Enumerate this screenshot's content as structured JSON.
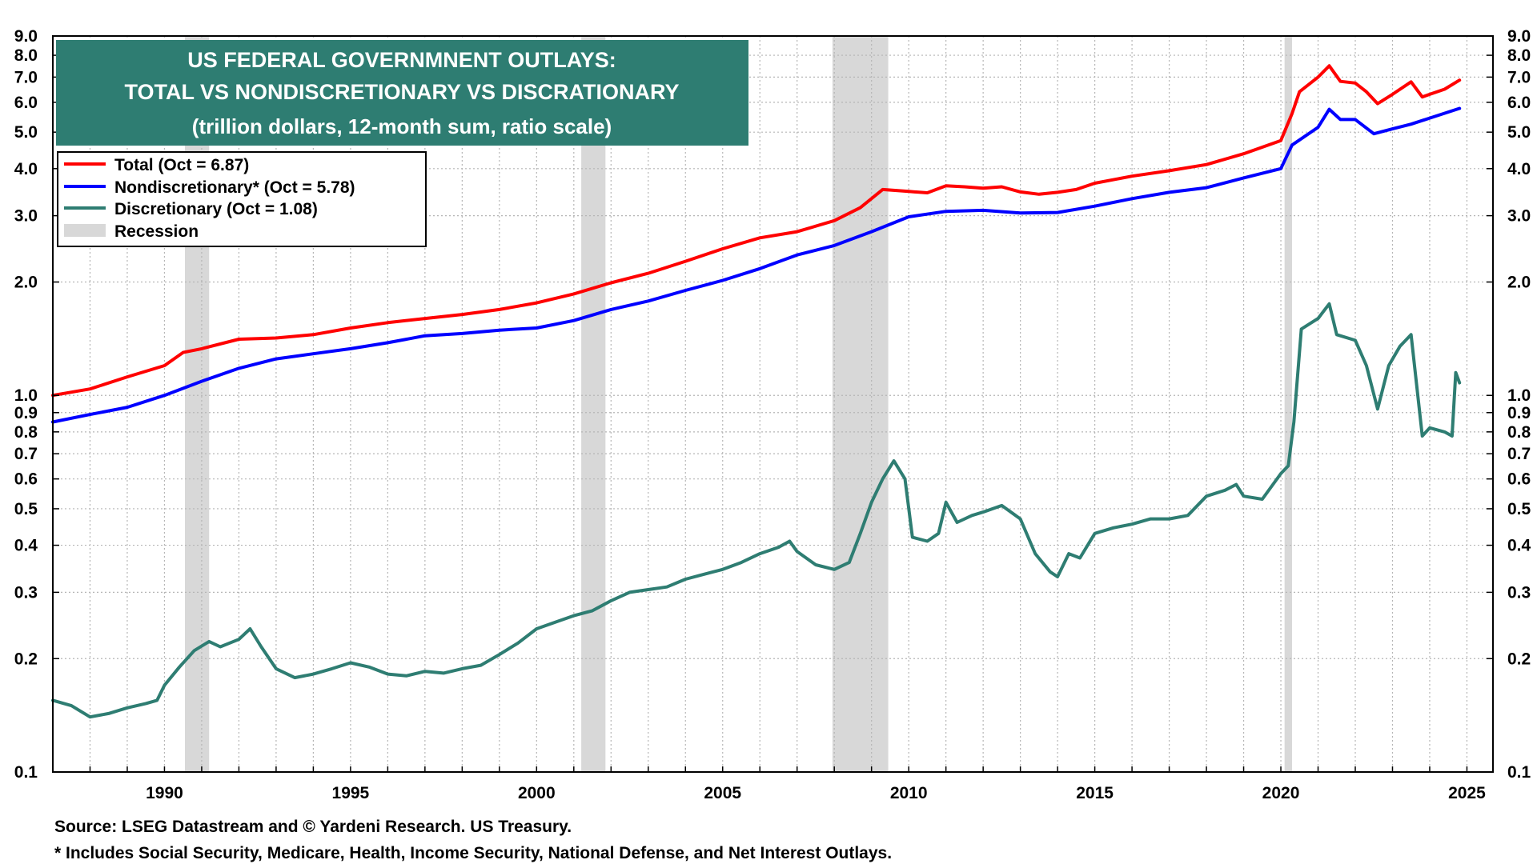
{
  "chart_data": {
    "type": "line",
    "title": "US FEDERAL GOVERNMNENT OUTLAYS:",
    "subtitle": "TOTAL VS NONDISCRETIONARY VS DISCRATIONARY",
    "units_note": "(trillion dollars, 12-month sum, ratio scale)",
    "y_scale": "log",
    "ylim": [
      0.1,
      9.0
    ],
    "xlim": [
      1987.0,
      2025.7
    ],
    "x_ticks": [
      1990,
      1995,
      2000,
      2005,
      2010,
      2015,
      2020,
      2025
    ],
    "x_tick_labels": [
      "1990",
      "1995",
      "2000",
      "2005",
      "2010",
      "2015",
      "2020",
      "2025"
    ],
    "y_ticks": [
      0.1,
      0.2,
      0.3,
      0.4,
      0.5,
      0.6,
      0.7,
      0.8,
      0.9,
      1.0,
      2.0,
      3.0,
      4.0,
      5.0,
      6.0,
      7.0,
      8.0,
      9.0
    ],
    "y_tick_labels": [
      "0.1",
      "0.2",
      "0.3",
      "0.4",
      "0.5",
      "0.6",
      "0.7",
      "0.8",
      "0.9",
      "1.0",
      "2.0",
      "3.0",
      "4.0",
      "5.0",
      "6.0",
      "7.0",
      "8.0",
      "9.0"
    ],
    "grid": true,
    "legend_position": "top-left",
    "recessions": [
      [
        1990.55,
        1991.2
      ],
      [
        2001.2,
        2001.85
      ],
      [
        2007.95,
        2009.45
      ],
      [
        2020.1,
        2020.3
      ]
    ],
    "series": [
      {
        "name": "Total (Oct = 6.87)",
        "color": "#ff0000",
        "points": [
          [
            1987.0,
            1.0
          ],
          [
            1988.0,
            1.04
          ],
          [
            1989.0,
            1.12
          ],
          [
            1990.0,
            1.2
          ],
          [
            1990.5,
            1.3
          ],
          [
            1991.0,
            1.33
          ],
          [
            1992.0,
            1.41
          ],
          [
            1993.0,
            1.42
          ],
          [
            1994.0,
            1.45
          ],
          [
            1995.0,
            1.51
          ],
          [
            1996.0,
            1.56
          ],
          [
            1997.0,
            1.6
          ],
          [
            1998.0,
            1.64
          ],
          [
            1999.0,
            1.69
          ],
          [
            2000.0,
            1.76
          ],
          [
            2001.0,
            1.86
          ],
          [
            2002.0,
            1.99
          ],
          [
            2003.0,
            2.11
          ],
          [
            2004.0,
            2.27
          ],
          [
            2005.0,
            2.45
          ],
          [
            2006.0,
            2.62
          ],
          [
            2007.0,
            2.72
          ],
          [
            2008.0,
            2.91
          ],
          [
            2008.7,
            3.15
          ],
          [
            2009.3,
            3.52
          ],
          [
            2010.0,
            3.48
          ],
          [
            2010.5,
            3.45
          ],
          [
            2011.0,
            3.6
          ],
          [
            2011.5,
            3.58
          ],
          [
            2012.0,
            3.55
          ],
          [
            2012.5,
            3.58
          ],
          [
            2013.0,
            3.47
          ],
          [
            2013.5,
            3.42
          ],
          [
            2014.0,
            3.46
          ],
          [
            2014.5,
            3.52
          ],
          [
            2015.0,
            3.66
          ],
          [
            2016.0,
            3.82
          ],
          [
            2017.0,
            3.95
          ],
          [
            2018.0,
            4.1
          ],
          [
            2019.0,
            4.38
          ],
          [
            2020.0,
            4.75
          ],
          [
            2020.3,
            5.6
          ],
          [
            2020.5,
            6.4
          ],
          [
            2021.0,
            7.0
          ],
          [
            2021.3,
            7.5
          ],
          [
            2021.6,
            6.82
          ],
          [
            2022.0,
            6.75
          ],
          [
            2022.3,
            6.4
          ],
          [
            2022.6,
            5.95
          ],
          [
            2023.0,
            6.3
          ],
          [
            2023.5,
            6.8
          ],
          [
            2023.8,
            6.2
          ],
          [
            2024.0,
            6.3
          ],
          [
            2024.4,
            6.5
          ],
          [
            2024.8,
            6.87
          ]
        ]
      },
      {
        "name": "Nondiscretionary* (Oct = 5.78)",
        "color": "#0000ff",
        "points": [
          [
            1987.0,
            0.85
          ],
          [
            1988.0,
            0.89
          ],
          [
            1989.0,
            0.93
          ],
          [
            1990.0,
            1.0
          ],
          [
            1991.0,
            1.09
          ],
          [
            1992.0,
            1.18
          ],
          [
            1993.0,
            1.25
          ],
          [
            1994.0,
            1.29
          ],
          [
            1995.0,
            1.33
          ],
          [
            1996.0,
            1.38
          ],
          [
            1997.0,
            1.44
          ],
          [
            1998.0,
            1.46
          ],
          [
            1999.0,
            1.49
          ],
          [
            2000.0,
            1.51
          ],
          [
            2001.0,
            1.58
          ],
          [
            2002.0,
            1.69
          ],
          [
            2003.0,
            1.78
          ],
          [
            2004.0,
            1.9
          ],
          [
            2005.0,
            2.02
          ],
          [
            2006.0,
            2.17
          ],
          [
            2007.0,
            2.36
          ],
          [
            2008.0,
            2.5
          ],
          [
            2009.0,
            2.72
          ],
          [
            2010.0,
            2.98
          ],
          [
            2011.0,
            3.08
          ],
          [
            2012.0,
            3.1
          ],
          [
            2013.0,
            3.05
          ],
          [
            2014.0,
            3.06
          ],
          [
            2015.0,
            3.18
          ],
          [
            2016.0,
            3.33
          ],
          [
            2017.0,
            3.46
          ],
          [
            2018.0,
            3.56
          ],
          [
            2019.0,
            3.78
          ],
          [
            2020.0,
            4.0
          ],
          [
            2020.3,
            4.62
          ],
          [
            2021.0,
            5.15
          ],
          [
            2021.3,
            5.75
          ],
          [
            2021.6,
            5.4
          ],
          [
            2022.0,
            5.4
          ],
          [
            2022.5,
            4.95
          ],
          [
            2023.0,
            5.1
          ],
          [
            2023.5,
            5.25
          ],
          [
            2024.0,
            5.45
          ],
          [
            2024.8,
            5.78
          ]
        ]
      },
      {
        "name": "Discretionary (Oct = 1.08)",
        "color": "#2e7d72",
        "points": [
          [
            1987.0,
            0.155
          ],
          [
            1987.5,
            0.15
          ],
          [
            1988.0,
            0.14
          ],
          [
            1988.5,
            0.143
          ],
          [
            1989.0,
            0.148
          ],
          [
            1989.5,
            0.152
          ],
          [
            1989.8,
            0.155
          ],
          [
            1990.0,
            0.17
          ],
          [
            1990.4,
            0.19
          ],
          [
            1990.8,
            0.21
          ],
          [
            1991.2,
            0.222
          ],
          [
            1991.5,
            0.215
          ],
          [
            1992.0,
            0.225
          ],
          [
            1992.3,
            0.24
          ],
          [
            1992.6,
            0.215
          ],
          [
            1993.0,
            0.188
          ],
          [
            1993.5,
            0.178
          ],
          [
            1994.0,
            0.182
          ],
          [
            1994.5,
            0.188
          ],
          [
            1995.0,
            0.195
          ],
          [
            1995.5,
            0.19
          ],
          [
            1996.0,
            0.182
          ],
          [
            1996.5,
            0.18
          ],
          [
            1997.0,
            0.185
          ],
          [
            1997.5,
            0.183
          ],
          [
            1998.0,
            0.188
          ],
          [
            1998.5,
            0.192
          ],
          [
            1999.0,
            0.205
          ],
          [
            1999.5,
            0.22
          ],
          [
            2000.0,
            0.24
          ],
          [
            2000.5,
            0.25
          ],
          [
            2001.0,
            0.26
          ],
          [
            2001.5,
            0.268
          ],
          [
            2002.0,
            0.285
          ],
          [
            2002.5,
            0.3
          ],
          [
            2003.0,
            0.305
          ],
          [
            2003.5,
            0.31
          ],
          [
            2004.0,
            0.325
          ],
          [
            2004.5,
            0.335
          ],
          [
            2005.0,
            0.345
          ],
          [
            2005.5,
            0.36
          ],
          [
            2006.0,
            0.38
          ],
          [
            2006.5,
            0.395
          ],
          [
            2006.8,
            0.41
          ],
          [
            2007.0,
            0.385
          ],
          [
            2007.5,
            0.355
          ],
          [
            2008.0,
            0.345
          ],
          [
            2008.4,
            0.36
          ],
          [
            2008.7,
            0.43
          ],
          [
            2009.0,
            0.52
          ],
          [
            2009.3,
            0.6
          ],
          [
            2009.6,
            0.67
          ],
          [
            2009.9,
            0.6
          ],
          [
            2010.1,
            0.42
          ],
          [
            2010.5,
            0.41
          ],
          [
            2010.8,
            0.43
          ],
          [
            2011.0,
            0.52
          ],
          [
            2011.3,
            0.46
          ],
          [
            2011.7,
            0.48
          ],
          [
            2012.0,
            0.49
          ],
          [
            2012.5,
            0.51
          ],
          [
            2013.0,
            0.47
          ],
          [
            2013.4,
            0.38
          ],
          [
            2013.8,
            0.34
          ],
          [
            2014.0,
            0.33
          ],
          [
            2014.3,
            0.38
          ],
          [
            2014.6,
            0.37
          ],
          [
            2015.0,
            0.43
          ],
          [
            2015.5,
            0.445
          ],
          [
            2016.0,
            0.455
          ],
          [
            2016.5,
            0.47
          ],
          [
            2017.0,
            0.47
          ],
          [
            2017.5,
            0.48
          ],
          [
            2018.0,
            0.54
          ],
          [
            2018.5,
            0.56
          ],
          [
            2018.8,
            0.58
          ],
          [
            2019.0,
            0.54
          ],
          [
            2019.5,
            0.53
          ],
          [
            2020.0,
            0.62
          ],
          [
            2020.2,
            0.65
          ],
          [
            2020.35,
            0.85
          ],
          [
            2020.55,
            1.5
          ],
          [
            2021.0,
            1.6
          ],
          [
            2021.3,
            1.75
          ],
          [
            2021.5,
            1.45
          ],
          [
            2022.0,
            1.4
          ],
          [
            2022.3,
            1.2
          ],
          [
            2022.6,
            0.92
          ],
          [
            2022.9,
            1.2
          ],
          [
            2023.2,
            1.35
          ],
          [
            2023.5,
            1.45
          ],
          [
            2023.8,
            0.78
          ],
          [
            2024.0,
            0.82
          ],
          [
            2024.4,
            0.8
          ],
          [
            2024.6,
            0.78
          ],
          [
            2024.7,
            1.15
          ],
          [
            2024.8,
            1.08
          ]
        ]
      }
    ],
    "legend": [
      {
        "label": "Total (Oct = 6.87)",
        "color": "#ff0000",
        "kind": "line"
      },
      {
        "label": "Nondiscretionary* (Oct = 5.78)",
        "color": "#0000ff",
        "kind": "line"
      },
      {
        "label": "Discretionary (Oct = 1.08)",
        "color": "#2e7d72",
        "kind": "line"
      },
      {
        "label": "Recession",
        "color": "#d8d8d8",
        "kind": "band"
      }
    ],
    "source": "Source: LSEG Datastream and © Yardeni Research. US Treasury.",
    "footnote": "* Includes Social Security, Medicare, Health, Income Security, National Defense, and Net Interest Outlays."
  },
  "colors": {
    "title_box": "#2e7d72",
    "grid": "#b5b5b5",
    "recession": "#d8d8d8"
  }
}
